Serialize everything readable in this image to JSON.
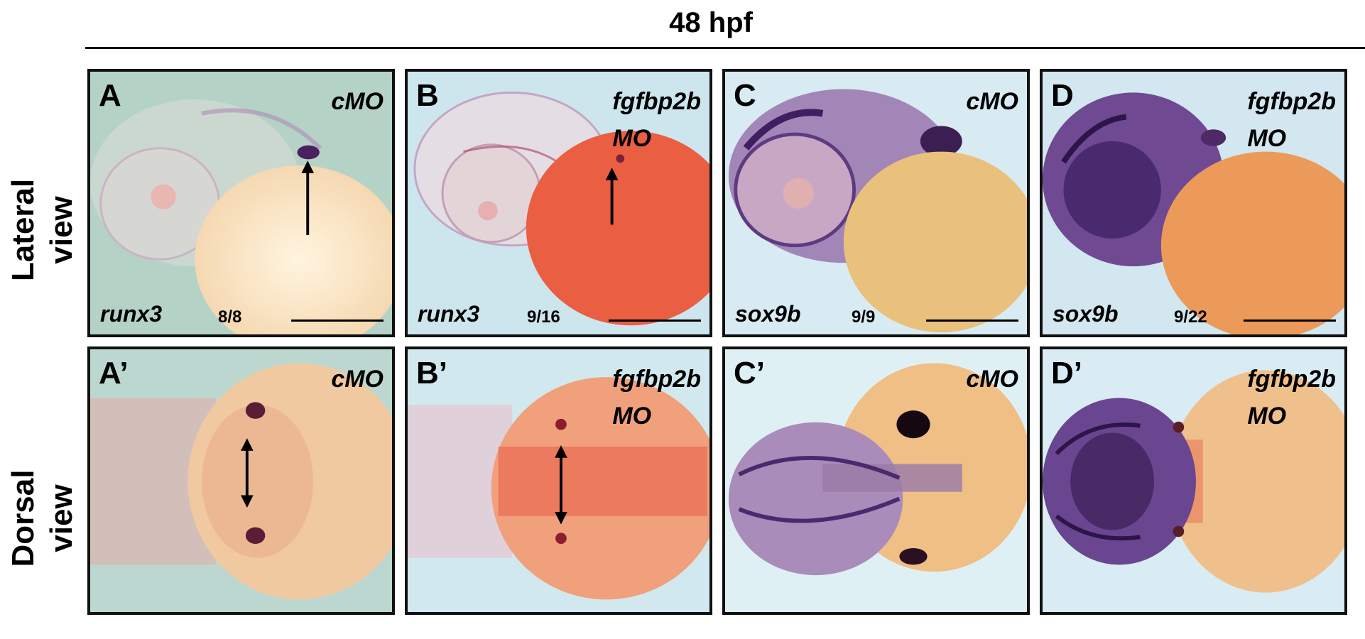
{
  "header": "48 hpf",
  "row_labels": [
    {
      "line1": "Lateral",
      "line2": "view"
    },
    {
      "line1": "Dorsal",
      "line2": "view"
    }
  ],
  "panels": [
    {
      "label": "A",
      "condition_line1": "cMO",
      "condition_line2": "",
      "gene": "runx3",
      "count": "8/8",
      "stain": "runx3 lateral",
      "arrow": "single"
    },
    {
      "label": "B",
      "condition_line1": "fgfbp2b",
      "condition_line2": "MO",
      "gene": "runx3",
      "count": "9/16",
      "stain": "runx3 lateral",
      "arrow": "single"
    },
    {
      "label": "C",
      "condition_line1": "cMO",
      "condition_line2": "",
      "gene": "sox9b",
      "count": "9/9",
      "stain": "sox9b lateral",
      "arrow": "none"
    },
    {
      "label": "D",
      "condition_line1": "fgfbp2b",
      "condition_line2": "MO",
      "gene": "sox9b",
      "count": "9/22",
      "stain": "sox9b lateral",
      "arrow": "none"
    },
    {
      "label": "A’",
      "condition_line1": "cMO",
      "condition_line2": "",
      "gene": "",
      "count": "",
      "stain": "runx3 dorsal",
      "arrow": "double"
    },
    {
      "label": "B’",
      "condition_line1": "fgfbp2b",
      "condition_line2": "MO",
      "gene": "",
      "count": "",
      "stain": "runx3 dorsal",
      "arrow": "double"
    },
    {
      "label": "C’",
      "condition_line1": "cMO",
      "condition_line2": "",
      "gene": "",
      "count": "",
      "stain": "sox9b dorsal",
      "arrow": "none"
    },
    {
      "label": "D’",
      "condition_line1": "fgfbp2b",
      "condition_line2": "MO",
      "gene": "",
      "count": "",
      "stain": "sox9b dorsal",
      "arrow": "none"
    }
  ],
  "colors": {
    "stain_purple": "#4a2470",
    "yolk_cream": "#f7dfb8",
    "yolk_red": "#e8614a",
    "background_green": "#b9d6cc",
    "background_blue": "#cfe6ee"
  }
}
